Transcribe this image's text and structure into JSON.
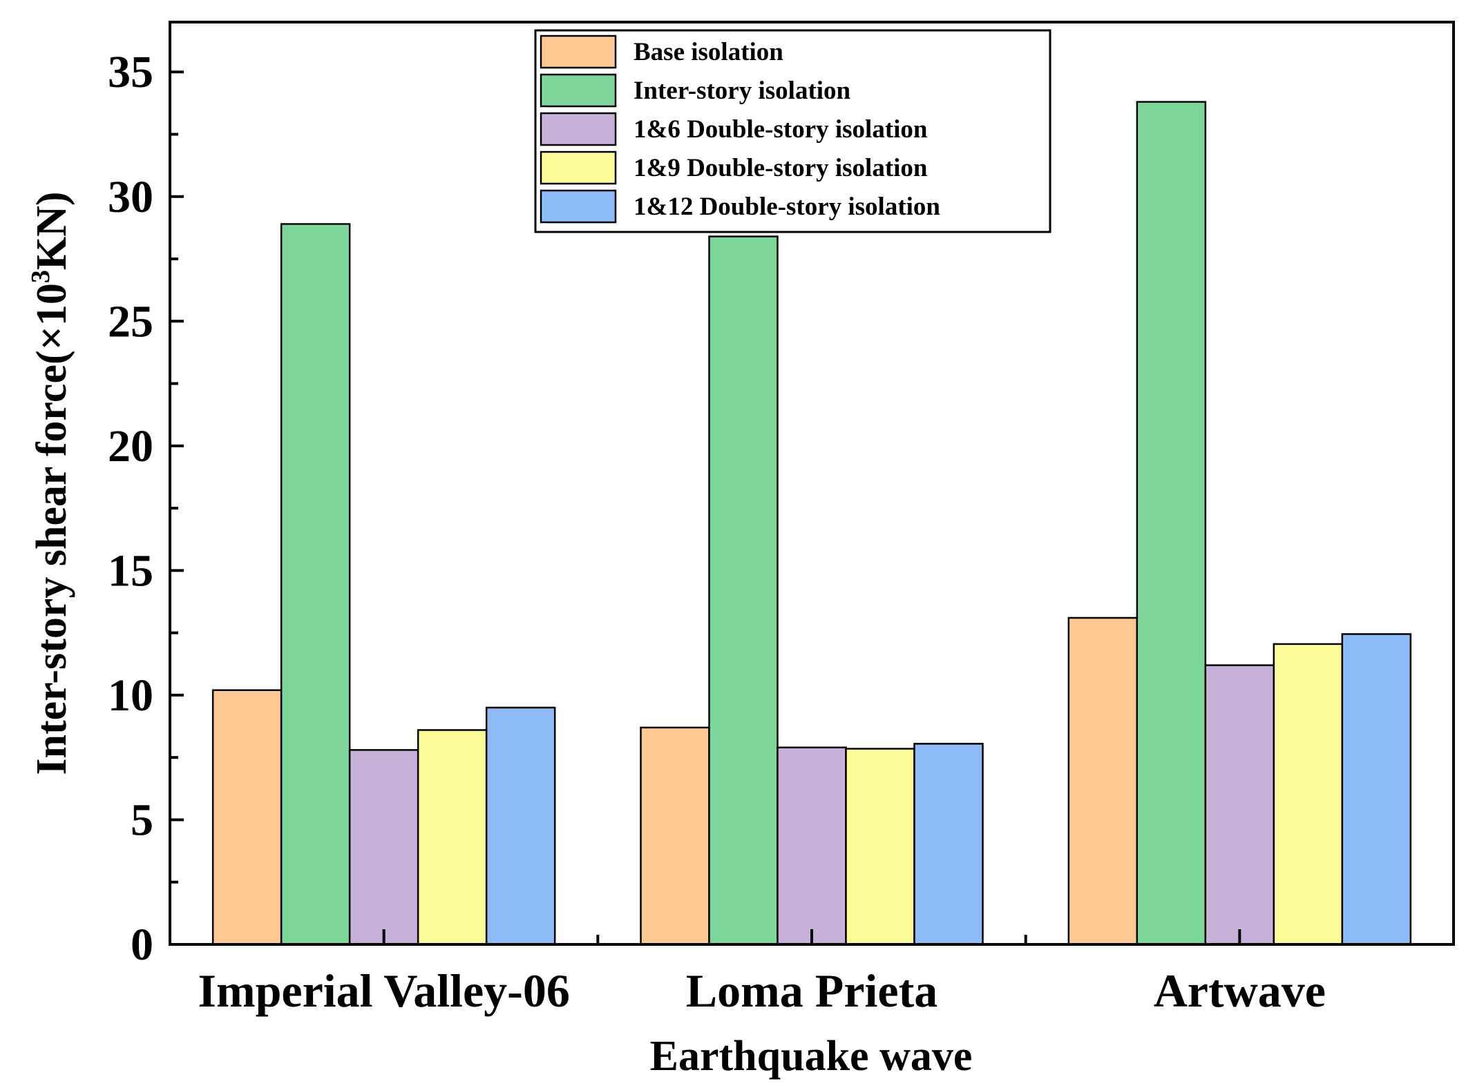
{
  "chart_data": {
    "type": "bar",
    "title": "",
    "xlabel": "Earthquake wave",
    "ylabel_main": "Inter-story shear force(×10",
    "ylabel_sup": "3",
    "ylabel_end": "KN)",
    "ylim": [
      0,
      37
    ],
    "yticks": [
      0,
      5,
      10,
      15,
      20,
      25,
      30,
      35
    ],
    "grid": false,
    "legend_position": "top-center",
    "categories": [
      "Imperial Valley-06",
      "Loma Prieta",
      "Artwave"
    ],
    "series": [
      {
        "name": "Base isolation",
        "color": "#FDC892",
        "values": [
          10.2,
          8.7,
          13.1
        ]
      },
      {
        "name": "Inter-story isolation",
        "color": "#7DD79A",
        "values": [
          28.9,
          28.4,
          33.8
        ]
      },
      {
        "name": "1&6 Double-story isolation",
        "color": "#C8B1D8",
        "values": [
          7.8,
          7.9,
          11.2
        ]
      },
      {
        "name": "1&9 Double-story isolation",
        "color": "#FCFC98",
        "values": [
          8.6,
          7.85,
          12.05
        ]
      },
      {
        "name": "1&12 Double-story isolation",
        "color": "#8DBBF7",
        "values": [
          9.5,
          8.05,
          12.45
        ]
      }
    ]
  }
}
